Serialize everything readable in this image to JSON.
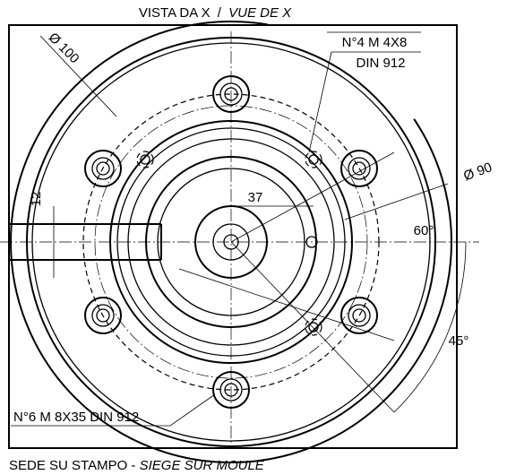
{
  "header": {
    "title": "VISTA DA X",
    "separator": "/",
    "title_alt": "VUE DE X"
  },
  "annotations": {
    "diameter_outer": "Ø 100",
    "screws_small": "N°4 M 4X8",
    "screws_small_std": "DIN 912",
    "diameter_bolt": "Ø 90",
    "offset": "37",
    "width": "12",
    "angle_60": "60°",
    "angle_45": "45°",
    "screws_large": "N°6 M 8X35 DIN 912"
  },
  "footer": {
    "text": "SEDE SU STAMPO -",
    "text_alt": "SIEGE SUR MOULE"
  }
}
